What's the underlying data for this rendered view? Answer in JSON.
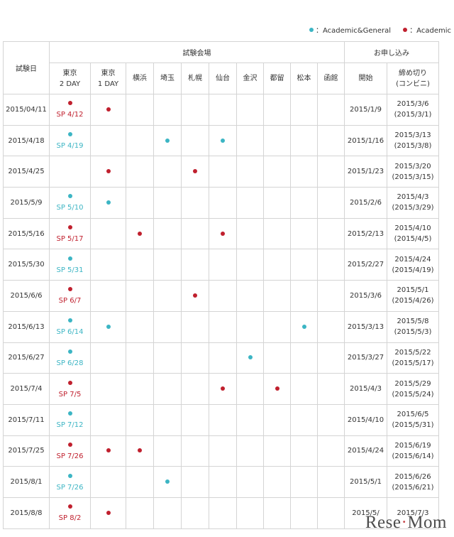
{
  "colors": {
    "ag": "#3cb5c4",
    "ac": "#c0202e",
    "border": "#d4d4d4"
  },
  "legend": {
    "ag": "：Academic&General",
    "ac": "：Academic"
  },
  "header": {
    "date": "試験日",
    "venue": "試験会場",
    "apply": "お申し込み",
    "venues": [
      [
        "東京",
        "2 DAY"
      ],
      [
        "東京",
        "1 DAY"
      ],
      [
        "横浜"
      ],
      [
        "埼玉"
      ],
      [
        "札幌"
      ],
      [
        "仙台"
      ],
      [
        "金沢"
      ],
      [
        "都留"
      ],
      [
        "松本"
      ],
      [
        "函館"
      ]
    ],
    "start": "開始",
    "deadline": [
      "締め切り",
      "(コンビニ)"
    ]
  },
  "rows": [
    {
      "date": "2015/04/11",
      "sp": {
        "type": "ac",
        "label": "SP 4/12"
      },
      "marks": {
        "1": "ac"
      },
      "start": "2015/1/9",
      "deadline": [
        "2015/3/6",
        "(2015/3/1)"
      ]
    },
    {
      "date": "2015/4/18",
      "sp": {
        "type": "ag",
        "label": "SP 4/19"
      },
      "marks": {
        "3": "ag",
        "5": "ag"
      },
      "start": "2015/1/16",
      "deadline": [
        "2015/3/13",
        "(2015/3/8)"
      ]
    },
    {
      "date": "2015/4/25",
      "sp": null,
      "marks": {
        "1": "ac",
        "4": "ac"
      },
      "start": "2015/1/23",
      "deadline": [
        "2015/3/20",
        "(2015/3/15)"
      ]
    },
    {
      "date": "2015/5/9",
      "sp": {
        "type": "ag",
        "label": "SP 5/10"
      },
      "marks": {
        "1": "ag"
      },
      "start": "2015/2/6",
      "deadline": [
        "2015/4/3",
        "(2015/3/29)"
      ]
    },
    {
      "date": "2015/5/16",
      "sp": {
        "type": "ac",
        "label": "SP 5/17"
      },
      "marks": {
        "2": "ac",
        "5": "ac"
      },
      "start": "2015/2/13",
      "deadline": [
        "2015/4/10",
        "(2015/4/5)"
      ]
    },
    {
      "date": "2015/5/30",
      "sp": {
        "type": "ag",
        "label": "SP 5/31"
      },
      "marks": {},
      "start": "2015/2/27",
      "deadline": [
        "2015/4/24",
        "(2015/4/19)"
      ]
    },
    {
      "date": "2015/6/6",
      "sp": {
        "type": "ac",
        "label": "SP 6/7"
      },
      "marks": {
        "4": "ac"
      },
      "start": "2015/3/6",
      "deadline": [
        "2015/5/1",
        "(2015/4/26)"
      ]
    },
    {
      "date": "2015/6/13",
      "sp": {
        "type": "ag",
        "label": "SP 6/14"
      },
      "marks": {
        "1": "ag",
        "8": "ag"
      },
      "start": "2015/3/13",
      "deadline": [
        "2015/5/8",
        "(2015/5/3)"
      ]
    },
    {
      "date": "2015/6/27",
      "sp": {
        "type": "ag",
        "label": "SP 6/28"
      },
      "marks": {
        "6": "ag"
      },
      "start": "2015/3/27",
      "deadline": [
        "2015/5/22",
        "(2015/5/17)"
      ]
    },
    {
      "date": "2015/7/4",
      "sp": {
        "type": "ac",
        "label": "SP 7/5"
      },
      "marks": {
        "5": "ac",
        "7": "ac"
      },
      "start": "2015/4/3",
      "deadline": [
        "2015/5/29",
        "(2015/5/24)"
      ]
    },
    {
      "date": "2015/7/11",
      "sp": {
        "type": "ag",
        "label": "SP 7/12"
      },
      "marks": {},
      "start": "2015/4/10",
      "deadline": [
        "2015/6/5",
        "(2015/5/31)"
      ]
    },
    {
      "date": "2015/7/25",
      "sp": {
        "type": "ac",
        "label": "SP 7/26"
      },
      "marks": {
        "1": "ac",
        "2": "ac"
      },
      "start": "2015/4/24",
      "deadline": [
        "2015/6/19",
        "(2015/6/14)"
      ]
    },
    {
      "date": "2015/8/1",
      "sp": {
        "type": "ag",
        "label": "SP 7/26"
      },
      "marks": {
        "3": "ag"
      },
      "start": "2015/5/1",
      "deadline": [
        "2015/6/26",
        "(2015/6/21)"
      ]
    },
    {
      "date": "2015/8/8",
      "sp": {
        "type": "ac",
        "label": "SP 8/2"
      },
      "marks": {
        "1": "ac"
      },
      "start": "2015/5/",
      "deadline": [
        "2015/7/3",
        ""
      ]
    }
  ],
  "watermark": {
    "pre": "Rese",
    "post": "Mom"
  }
}
